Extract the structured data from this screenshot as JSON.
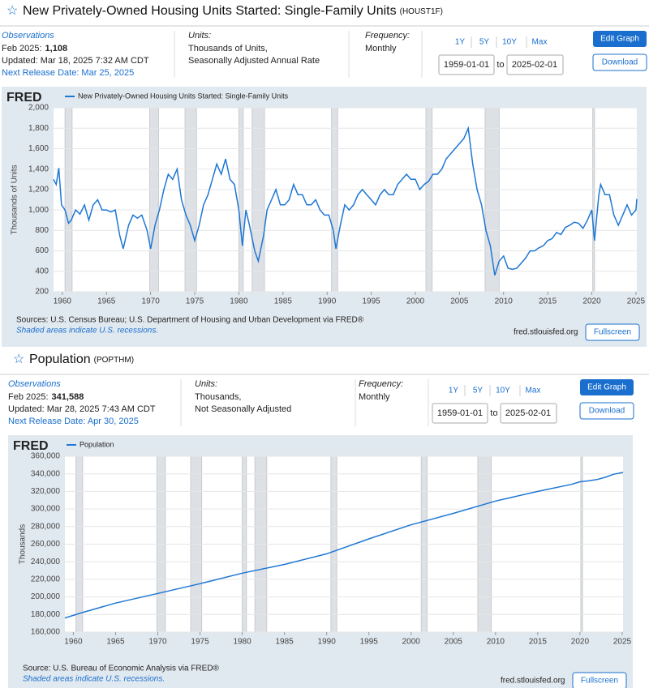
{
  "panels": [
    {
      "title": "New Privately-Owned Housing Units Started: Single-Family Units",
      "series_id": "(HOUST1F)",
      "observations": "Observations",
      "obs_date": "Feb 2025:",
      "obs_value": "1,108",
      "updated": "Updated: Mar 18, 2025 7:32 AM CDT",
      "next_release": "Next Release Date: Mar 25, 2025",
      "units_label": "Units:",
      "units_1": "Thousands of Units,",
      "units_2": "Seasonally Adjusted Annual Rate",
      "frequency_label": "Frequency:",
      "frequency": "Monthly",
      "ranges": [
        "1Y",
        "5Y",
        "10Y",
        "Max"
      ],
      "date_from": "1959-01-01",
      "to": "to",
      "date_to": "2025-02-01",
      "edit": "Edit Graph",
      "download": "Download",
      "logo": "FRED",
      "sources": "Sources: U.S. Census Bureau; U.S. Department of Housing and Urban Development via FRED®",
      "recession_note": "Shaded areas indicate U.S. recessions.",
      "url": "fred.stlouisfed.org",
      "fullscreen": "Fullscreen"
    },
    {
      "title": "Population",
      "series_id": "(POPTHM)",
      "observations": "Observations",
      "obs_date": "Feb 2025:",
      "obs_value": "341,588",
      "updated": "Updated: Mar 28, 2025 7:43 AM CDT",
      "next_release": "Next Release Date: Apr 30, 2025",
      "units_label": "Units:",
      "units_1": "Thousands,",
      "units_2": "Not Seasonally Adjusted",
      "frequency_label": "Frequency:",
      "frequency": "Monthly",
      "ranges": [
        "1Y",
        "5Y",
        "10Y",
        "Max"
      ],
      "date_from": "1959-01-01",
      "to": "to",
      "date_to": "2025-02-01",
      "edit": "Edit Graph",
      "download": "Download",
      "logo": "FRED",
      "sources": "Source: U.S. Bureau of Economic Analysis via FRED®",
      "recession_note": "Shaded areas indicate U.S. recessions.",
      "url": "fred.stlouisfed.org",
      "fullscreen": "Fullscreen"
    }
  ],
  "chart_data": [
    {
      "type": "line",
      "y_label": "Thousands of Units",
      "xlim": [
        1959,
        2025.1
      ],
      "ylim": [
        200,
        2000
      ],
      "xticks": [
        1960,
        1965,
        1970,
        1975,
        1980,
        1985,
        1990,
        1995,
        2000,
        2005,
        2010,
        2015,
        2020,
        2025
      ],
      "yticks": [
        200,
        400,
        600,
        800,
        {
          "value": 1000,
          "label": "1,000"
        },
        {
          "value": 1200,
          "label": "1,200"
        },
        {
          "value": 1400,
          "label": "1,400"
        },
        {
          "value": 1600,
          "label": "1,600"
        },
        {
          "value": 1800,
          "label": "1,800"
        },
        {
          "value": 2000,
          "label": "2,000"
        }
      ],
      "grid": true,
      "recessions": [
        [
          1960.3,
          1961.1
        ],
        [
          1969.9,
          1970.9
        ],
        [
          1973.9,
          1975.2
        ],
        [
          1980.0,
          1980.5
        ],
        [
          1981.5,
          1982.9
        ],
        [
          1990.5,
          1991.2
        ],
        [
          2001.2,
          2001.9
        ],
        [
          2007.9,
          2009.5
        ],
        [
          2020.1,
          2020.3
        ]
      ],
      "x": [
        1959.0,
        1959.3,
        1959.6,
        1959.9,
        1960.3,
        1960.7,
        1961.0,
        1961.5,
        1962.0,
        1962.5,
        1963.0,
        1963.5,
        1964.0,
        1964.5,
        1965.0,
        1965.5,
        1966.0,
        1966.5,
        1966.9,
        1967.5,
        1968.0,
        1968.5,
        1969.0,
        1969.6,
        1970.0,
        1970.5,
        1971.0,
        1971.5,
        1972.0,
        1972.5,
        1973.0,
        1973.5,
        1974.0,
        1974.5,
        1975.0,
        1975.5,
        1976.0,
        1976.5,
        1977.0,
        1977.5,
        1978.0,
        1978.5,
        1979.0,
        1979.5,
        1980.0,
        1980.4,
        1980.8,
        1981.2,
        1981.8,
        1982.2,
        1982.8,
        1983.2,
        1983.7,
        1984.2,
        1984.7,
        1985.2,
        1985.7,
        1986.2,
        1986.7,
        1987.2,
        1987.7,
        1988.2,
        1988.7,
        1989.2,
        1989.7,
        1990.2,
        1990.7,
        1991.0,
        1991.5,
        1992.0,
        1992.5,
        1993.0,
        1993.5,
        1994.0,
        1994.5,
        1995.0,
        1995.5,
        1996.0,
        1996.5,
        1997.0,
        1997.5,
        1998.0,
        1998.5,
        1999.0,
        1999.5,
        2000.0,
        2000.5,
        2001.0,
        2001.5,
        2002.0,
        2002.5,
        2003.0,
        2003.5,
        2004.0,
        2004.5,
        2005.0,
        2005.5,
        2006.0,
        2006.5,
        2007.0,
        2007.5,
        2008.0,
        2008.5,
        2009.0,
        2009.5,
        2010.0,
        2010.5,
        2011.0,
        2011.5,
        2012.0,
        2012.5,
        2013.0,
        2013.5,
        2014.0,
        2014.5,
        2015.0,
        2015.5,
        2016.0,
        2016.5,
        2017.0,
        2017.5,
        2018.0,
        2018.5,
        2019.0,
        2019.5,
        2020.0,
        2020.3,
        2020.8,
        2021.0,
        2021.5,
        2022.0,
        2022.5,
        2023.0,
        2023.5,
        2024.0,
        2024.5,
        2025.0,
        2025.1
      ],
      "series": [
        {
          "name": "New Privately-Owned Housing Units Started: Single-Family Units",
          "color": "#1f77d4",
          "values": [
            1300,
            1250,
            1410,
            1050,
            1000,
            870,
            900,
            1000,
            960,
            1050,
            900,
            1050,
            1100,
            1000,
            1000,
            980,
            1000,
            750,
            620,
            850,
            950,
            920,
            950,
            800,
            620,
            850,
            1000,
            1200,
            1350,
            1300,
            1400,
            1100,
            950,
            850,
            700,
            850,
            1050,
            1150,
            1300,
            1450,
            1350,
            1500,
            1300,
            1250,
            1000,
            650,
            1000,
            850,
            600,
            500,
            750,
            1000,
            1100,
            1200,
            1050,
            1050,
            1100,
            1250,
            1150,
            1150,
            1050,
            1050,
            1100,
            1000,
            950,
            950,
            800,
            620,
            850,
            1050,
            1000,
            1050,
            1150,
            1200,
            1150,
            1100,
            1050,
            1150,
            1200,
            1150,
            1150,
            1250,
            1300,
            1350,
            1300,
            1300,
            1200,
            1250,
            1280,
            1350,
            1350,
            1400,
            1500,
            1550,
            1600,
            1650,
            1700,
            1800,
            1450,
            1200,
            1050,
            800,
            650,
            360,
            500,
            550,
            430,
            420,
            430,
            480,
            530,
            600,
            600,
            630,
            650,
            700,
            720,
            780,
            760,
            830,
            850,
            880,
            870,
            820,
            900,
            1000,
            700,
            1150,
            1250,
            1150,
            1150,
            950,
            850,
            950,
            1050,
            950,
            1000,
            1108
          ]
        }
      ]
    },
    {
      "type": "line",
      "y_label": "Thousands",
      "xlim": [
        1959,
        2025.1
      ],
      "ylim": [
        160000,
        360000
      ],
      "xticks": [
        1960,
        1965,
        1970,
        1975,
        1980,
        1985,
        1990,
        1995,
        2000,
        2005,
        2010,
        2015,
        2020,
        2025
      ],
      "yticks": [
        {
          "value": 160000,
          "label": "160,000"
        },
        {
          "value": 180000,
          "label": "180,000"
        },
        {
          "value": 200000,
          "label": "200,000"
        },
        {
          "value": 220000,
          "label": "220,000"
        },
        {
          "value": 240000,
          "label": "240,000"
        },
        {
          "value": 260000,
          "label": "260,000"
        },
        {
          "value": 280000,
          "label": "280,000"
        },
        {
          "value": 300000,
          "label": "300,000"
        },
        {
          "value": 320000,
          "label": "320,000"
        },
        {
          "value": 340000,
          "label": "340,000"
        },
        {
          "value": 360000,
          "label": "360,000"
        }
      ],
      "grid": true,
      "recessions": [
        [
          1960.3,
          1961.1
        ],
        [
          1969.9,
          1970.9
        ],
        [
          1973.9,
          1975.2
        ],
        [
          1980.0,
          1980.5
        ],
        [
          1981.5,
          1982.9
        ],
        [
          1990.5,
          1991.2
        ],
        [
          2001.2,
          2001.9
        ],
        [
          2007.9,
          2009.5
        ],
        [
          2020.1,
          2020.3
        ]
      ],
      "x": [
        1959,
        1961,
        1965,
        1970,
        1975,
        1980,
        1985,
        1990,
        1995,
        2000,
        2005,
        2010,
        2015,
        2019,
        2020,
        2021,
        2022,
        2023,
        2024,
        2025.1
      ],
      "series": [
        {
          "name": "Population",
          "color": "#1f77d4",
          "values": [
            176000,
            182000,
            193000,
            204000,
            215000,
            227000,
            237000,
            249000,
            266000,
            282000,
            295000,
            309000,
            320000,
            328000,
            331000,
            332000,
            333500,
            336000,
            339500,
            341588
          ]
        }
      ]
    }
  ]
}
